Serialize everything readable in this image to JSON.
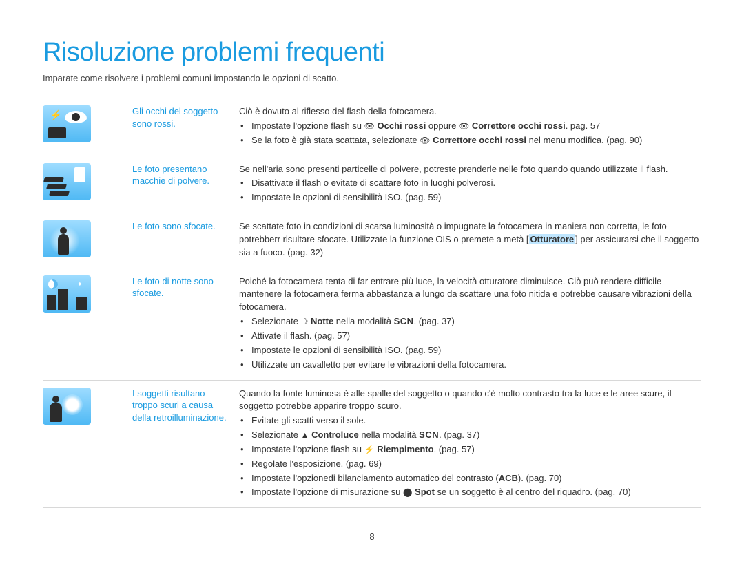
{
  "colors": {
    "accent": "#1a9be0",
    "text": "#333333",
    "divider": "#d8d8d8",
    "icon_bg_top": "#9edcff",
    "icon_bg_bottom": "#4fb9f4",
    "highlight": "#bfe6ff"
  },
  "title": "Risoluzione problemi frequenti",
  "intro": "Imparate come risolvere i problemi comuni impostando le opzioni di scatto.",
  "page_number": "8",
  "rows": {
    "r1": {
      "icon": "red-eye-icon",
      "label": "Gli occhi del soggetto sono rossi.",
      "intro": "Ciò è dovuto al riflesso del flash della fotocamera.",
      "b1_pre": "Impostate l'opzione flash su ",
      "b1_icon1": "👁",
      "b1_bold1": "Occhi rossi",
      "b1_mid": " oppure ",
      "b1_icon2": "👁",
      "b1_bold2": "Correttore occhi rossi",
      "b1_post": ". pag. 57",
      "b2_pre": "Se la foto è già stata scattata, selezionate ",
      "b2_icon": "👁",
      "b2_bold": "Correttore occhi rossi",
      "b2_post": " nel menu modifica. (pag. 90)"
    },
    "r2": {
      "icon": "dust-icon",
      "label": "Le foto presentano macchie di polvere.",
      "intro": "Se nell'aria sono presenti particelle di polvere, potreste prenderle nelle foto quando quando utilizzate il flash.",
      "b1": "Disattivate il flash o evitate di scattare foto in luoghi polverosi.",
      "b2": "Impostate le opzioni di sensibilità ISO. (pag. 59)"
    },
    "r3": {
      "icon": "blur-icon",
      "label": "Le foto sono sfocate.",
      "text_pre": "Se scattate foto in condizioni di scarsa luminosità o impugnate la fotocamera in maniera non corretta, le foto potrebberr risultare sfocate. Utilizzate la funzione OIS o premete a metà [",
      "text_bold": "Otturatore",
      "text_post": "] per assicurarsi che il soggetto sia a fuoco. (pag. 32)"
    },
    "r4": {
      "icon": "night-icon",
      "label": "Le foto di notte sono sfocate.",
      "intro": "Poiché la fotocamera tenta di far entrare più luce, la velocità otturatore diminuisce. Ciò può rendere difficile mantenere la fotocamera ferma abbastanza a lungo da scattare una foto nitida e potrebbe causare vibrazioni della fotocamera.",
      "b1_pre": "Selezionate ",
      "b1_icon": "☽",
      "b1_bold": "Notte",
      "b1_mid": " nella modalità ",
      "b1_scn": "SCN",
      "b1_post": ". (pag. 37)",
      "b2": "Attivate il flash. (pag. 57)",
      "b3": "Impostate le opzioni di sensibilità ISO. (pag. 59)",
      "b4": "Utilizzate un cavalletto per evitare le vibrazioni della fotocamera."
    },
    "r5": {
      "icon": "backlight-icon",
      "label": "I soggetti risultano troppo scuri a causa della retroilluminazione.",
      "intro": "Quando la fonte luminosa è alle spalle del soggetto o quando c'è molto contrasto tra la luce e le aree scure, il soggetto potrebbe apparire troppo scuro.",
      "b1": "Evitate gli scatti verso il sole.",
      "b2_pre": "Selezionate ",
      "b2_icon": "▲",
      "b2_bold": "Controluce",
      "b2_mid": " nella modalità ",
      "b2_scn": "SCN",
      "b2_post": ". (pag. 37)",
      "b3_pre": "Impostate l'opzione flash su ",
      "b3_icon": "⚡",
      "b3_bold": "Riempimento",
      "b3_post": ". (pag. 57)",
      "b4": "Regolate l'esposizione. (pag. 69)",
      "b5_pre": "Impostate l'opzionedi bilanciamento automatico del contrasto (",
      "b5_bold": "ACB",
      "b5_post": "). (pag. 70)",
      "b6_pre": "Impostate l'opzione di misurazione su ",
      "b6_icon": "⬤",
      "b6_bold": "Spot",
      "b6_post": " se un soggetto è al centro del riquadro. (pag. 70)"
    }
  }
}
